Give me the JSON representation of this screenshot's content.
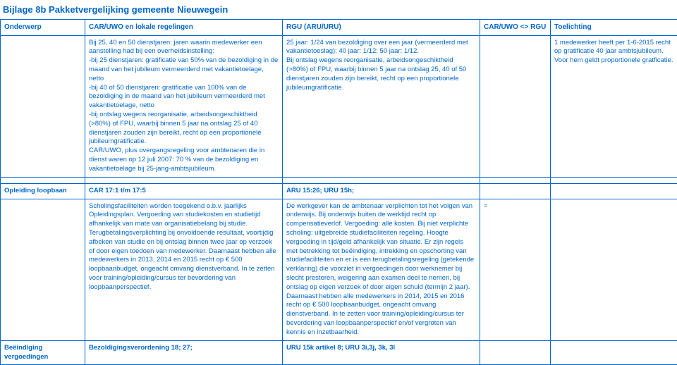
{
  "title": "Bijlage 8b Pakketvergelijking gemeente Nieuwegein",
  "headers": {
    "c1": "Onderwerp",
    "c2": "CAR/UWO en lokale regelingen",
    "c3": "RGU (ARU/URU)",
    "c4": "CAR/UWO <> RGU",
    "c5": "Toelichting"
  },
  "rows": [
    {
      "c1": "",
      "c2": "Bij 25, 40 en 50 dienstjaren: jaren waarin medewerker een aanstelling had bij een overheidsinstelling:\n-bij 25 dienstjaren: gratificatie van 50% van de bezoldiging in de maand van het jubileum vermeerderd met vakantietoelage, netto\n-bij 40 of 50 dienstjaren: gratificatie van 100% van de bezoldiging in de maand van het jubileum vermeerderd met vakantietoelage, netto\n-bij ontslag wegens reorganisatie, arbeidsongeschiktheid (>80%) of FPU, waarbij binnen 5 jaar na ontslag 25 of 40 dienstjaren zouden zijn bereikt, recht op een proportionele jubileumgratificatie.\nCAR/UWO, plus overgangsregeling voor ambtenaren die in dienst waren op 12 juli 2007: 70 % van de bezoldiging en vakantietoelage bij 25-jarig-ambtsjubileum.",
      "c3": "25 jaar: 1/24 van bezoldiging over een jaar (vermeerderd met vakantietoeslag); 40 jaar: 1/12; 50 jaar: 1/12.\nBij ontslag wegens reorganisatie, arbeidsongeschiktheid (>80%) of FPU, waarbij binnen 5 jaar na ontslag 25, 40 of 50 dienstjaren zouden zijn bereikt, recht op een proportionele jubileumgratificatie.",
      "c4": "",
      "c5": "1 medewerker heeft per 1-6-2015 recht op gratificatie 40 jaar ambtsjubileum. Voor hem geldt proportionele gratficatie."
    },
    {
      "c1": "",
      "c2": "",
      "c3": "",
      "c4": "",
      "c5": ""
    },
    {
      "header": true,
      "c1": "Opleiding loopbaan",
      "c2": "CAR 17:1 t/m 17:5",
      "c3": "ARU 15:26; URU 15h;",
      "c4": "",
      "c5": ""
    },
    {
      "c1": "",
      "c2": "Scholingsfaciliteiten worden toegekend o.b.v. jaarlijks Opleidingsplan. Vergoeding van studiekosten en studietijd afhankelijk van mate van organisatiebelang bij studie. Terugbetalingsverplichting bij onvoldoende resultaat, voortijdig afbeken van studie en bij ontslag binnen twee jaar op verzoek of door eigen toedoen van medewerker.   Daarnaast hebben alle medewerkers in 2013, 2014 en 2015 recht op € 500 loopbaanbudget, ongeacht omvang dienstverband. In te zetten voor training/opleiding/cursus ter bevordering van loopbaanperspectief.",
      "c3": "De werkgever kan de ambtenaar verplichten tot het volgen van onderwijs. Bij onderwijs buiten de werktijd recht op compensatieverlof. Vergoeding: alle kosten. Bij niet verplichte scholing: uitgebreide studiefaciliteiten regeling. Hoogte vergoeding in tijd/geld afhankelijk van situatie. Er zijn regels met betrekking tot beëindiging, intrekking en opschorting van studiefaciliteiten en er is een terugbetalingsregeling (getekende verklaring) die voorziet in vergoedingen door werknemer bij slecht presteren, weigering aan examen deel te nemen, bij ontslag op eigen verzoek of door eigen schuld (termijn 2 jaar). Daarnaast hebben alle medewerkers in 2014, 2015 en 2016 recht op € 500 loopbaanbudget, ongeacht omvang dienstverband. In te zetten voor training/opleiding/cursus ter bevordering van loopbaanperspectief en/of vergroten van kennis en inzetbaarheid.",
      "c4": "=",
      "c5": ""
    },
    {
      "header": true,
      "c1": "Beëindiging vergoedingen",
      "c2": "Bezoldigingsverordening 18; 27;",
      "c3": "URU 15k artikel 8; URU 3i,3j, 3k, 3l",
      "c4": "",
      "c5": ""
    }
  ]
}
